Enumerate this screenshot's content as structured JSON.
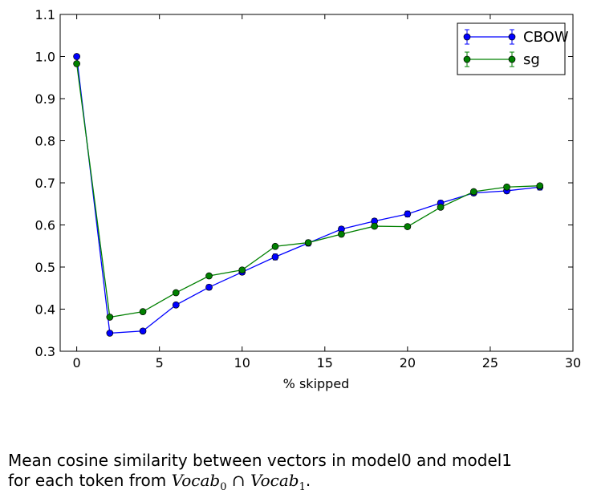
{
  "chart_data": {
    "type": "line",
    "title": "",
    "xlabel": "% skipped",
    "ylabel": "",
    "xlim": [
      -1,
      30
    ],
    "ylim": [
      0.3,
      1.1
    ],
    "xticks": [
      0,
      5,
      10,
      15,
      20,
      25,
      30
    ],
    "xtick_labels": [
      "0",
      "5",
      "10",
      "15",
      "20",
      "25",
      "30"
    ],
    "yticks": [
      0.3,
      0.4,
      0.5,
      0.6,
      0.7,
      0.8,
      0.9,
      1.0,
      1.1
    ],
    "ytick_labels": [
      "0.3",
      "0.4",
      "0.5",
      "0.6",
      "0.7",
      "0.8",
      "0.9",
      "1.0",
      "1.1"
    ],
    "grid": false,
    "legend_position": "top-right",
    "error_bars": true,
    "x": [
      0,
      2,
      4,
      6,
      8,
      10,
      12,
      14,
      16,
      18,
      20,
      22,
      24,
      26,
      28
    ],
    "series": [
      {
        "name": "CBOW",
        "color": "#0000ff",
        "values": [
          1.0,
          0.343,
          0.348,
          0.41,
          0.452,
          0.488,
          0.524,
          0.557,
          0.59,
          0.609,
          0.626,
          0.652,
          0.676,
          0.681,
          0.69
        ],
        "errors": [
          0.003,
          0.004,
          0.005,
          0.005,
          0.006,
          0.006,
          0.007,
          0.007,
          0.006,
          0.006,
          0.007,
          0.006,
          0.006,
          0.006,
          0.007
        ]
      },
      {
        "name": "sg",
        "color": "#008000",
        "values": [
          0.983,
          0.381,
          0.394,
          0.439,
          0.479,
          0.493,
          0.549,
          0.558,
          0.578,
          0.597,
          0.596,
          0.642,
          0.679,
          0.69,
          0.693
        ],
        "errors": [
          0.003,
          0.004,
          0.005,
          0.005,
          0.005,
          0.005,
          0.005,
          0.005,
          0.005,
          0.005,
          0.005,
          0.005,
          0.005,
          0.005,
          0.005
        ]
      }
    ]
  },
  "caption": {
    "line1": "Mean cosine similarity between vectors in model0 and model1",
    "line2_prefix": "for each token from ",
    "formula_a": "Vocab",
    "formula_a_sub": "0",
    "formula_op": " ∩ ",
    "formula_b": "Vocab",
    "formula_b_sub": "1",
    "line2_suffix": "."
  }
}
